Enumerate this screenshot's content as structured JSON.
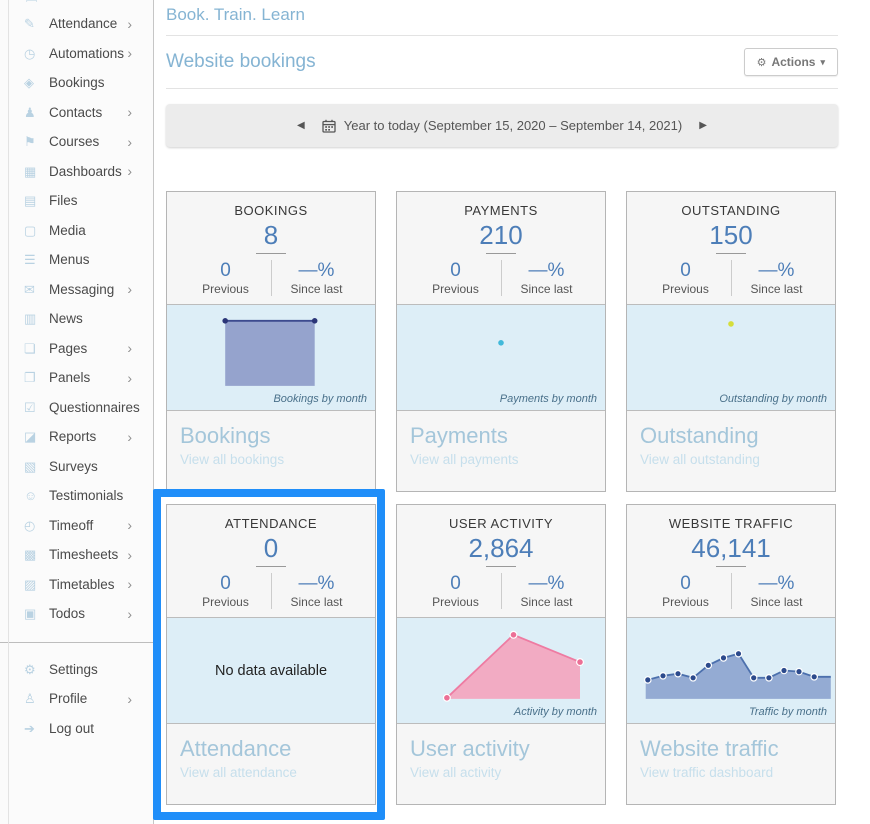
{
  "colors": {
    "accent_blue": "#85b4d3",
    "number_blue": "#4d7eb8",
    "chart_bg": "#ddeef7",
    "highlight": "#1f8ef9",
    "sidebar_icon": "#b9d2e2"
  },
  "sidebar": {
    "chevron_glyph": "›",
    "partial_icon_glyph": "▤",
    "items": [
      {
        "icon": "attendance-icon",
        "glyph": "✎",
        "label": "Attendance",
        "chevron": true
      },
      {
        "icon": "automations-icon",
        "glyph": "◷",
        "label": "Automations",
        "chevron": true
      },
      {
        "icon": "bookings-icon",
        "glyph": "◈",
        "label": "Bookings",
        "chevron": false
      },
      {
        "icon": "contacts-icon",
        "glyph": "♟",
        "label": "Contacts",
        "chevron": true
      },
      {
        "icon": "courses-icon",
        "glyph": "⚑",
        "label": "Courses",
        "chevron": true
      },
      {
        "icon": "dashboards-icon",
        "glyph": "▦",
        "label": "Dashboards",
        "chevron": true
      },
      {
        "icon": "files-icon",
        "glyph": "▤",
        "label": "Files",
        "chevron": false
      },
      {
        "icon": "media-icon",
        "glyph": "▢",
        "label": "Media",
        "chevron": false
      },
      {
        "icon": "menus-icon",
        "glyph": "☰",
        "label": "Menus",
        "chevron": false
      },
      {
        "icon": "messaging-icon",
        "glyph": "✉",
        "label": "Messaging",
        "chevron": true
      },
      {
        "icon": "news-icon",
        "glyph": "▥",
        "label": "News",
        "chevron": false
      },
      {
        "icon": "pages-icon",
        "glyph": "❏",
        "label": "Pages",
        "chevron": true
      },
      {
        "icon": "panels-icon",
        "glyph": "❐",
        "label": "Panels",
        "chevron": true
      },
      {
        "icon": "questionnaires-icon",
        "glyph": "☑",
        "label": "Questionnaires",
        "chevron": false
      },
      {
        "icon": "reports-icon",
        "glyph": "◪",
        "label": "Reports",
        "chevron": true
      },
      {
        "icon": "surveys-icon",
        "glyph": "▧",
        "label": "Surveys",
        "chevron": false
      },
      {
        "icon": "testimonials-icon",
        "glyph": "☺",
        "label": "Testimonials",
        "chevron": false
      },
      {
        "icon": "timeoff-icon",
        "glyph": "◴",
        "label": "Timeoff",
        "chevron": true
      },
      {
        "icon": "timesheets-icon",
        "glyph": "▩",
        "label": "Timesheets",
        "chevron": true
      },
      {
        "icon": "timetables-icon",
        "glyph": "▨",
        "label": "Timetables",
        "chevron": true
      },
      {
        "icon": "todos-icon",
        "glyph": "▣",
        "label": "Todos",
        "chevron": true
      }
    ],
    "footer_items": [
      {
        "icon": "settings-icon",
        "glyph": "⚙",
        "label": "Settings",
        "chevron": false
      },
      {
        "icon": "profile-icon",
        "glyph": "♙",
        "label": "Profile",
        "chevron": true
      },
      {
        "icon": "logout-icon",
        "glyph": "➔",
        "label": "Log out",
        "chevron": false
      }
    ]
  },
  "header": {
    "page_title": "Book. Train. Learn"
  },
  "section": {
    "title": "Website bookings",
    "actions_label": "Actions",
    "gear_glyph": "⚙",
    "caret_glyph": "▾"
  },
  "date_bar": {
    "prev_glyph": "◀",
    "next_glyph": "▶",
    "label": "Year to today (September 15, 2020 – September 14, 2021)"
  },
  "cards": [
    {
      "id": "bookings",
      "label": "BOOKINGS",
      "value": "8",
      "previous_value": "0",
      "previous_label": "Previous",
      "change_value": "—%",
      "change_label": "Since last",
      "caption": "Bookings by month",
      "footer_title": "Bookings",
      "footer_link": "View all bookings",
      "chart": {
        "type": "area",
        "colors": {
          "fill": "#95a3cd",
          "stroke": "#3d4b8f",
          "dot": "#2b3578",
          "dot_ring": "none"
        },
        "fill_path": [
          [
            28,
            15
          ],
          [
            71,
            15
          ],
          [
            71,
            77
          ],
          [
            28,
            77
          ]
        ],
        "line_path": [
          [
            28,
            15
          ],
          [
            71,
            15
          ]
        ],
        "dots": [
          [
            28,
            15
          ],
          [
            71,
            15
          ]
        ],
        "dot_r": 2.8
      }
    },
    {
      "id": "payments",
      "label": "PAYMENTS",
      "value": "210",
      "previous_value": "0",
      "previous_label": "Previous",
      "change_value": "—%",
      "change_label": "Since last",
      "caption": "Payments by month",
      "footer_title": "Payments",
      "footer_link": "View all payments",
      "chart": {
        "type": "scatter",
        "colors": {
          "fill": "none",
          "stroke": "none",
          "dot": "#41b9da",
          "dot_ring": "none"
        },
        "dots": [
          [
            50,
            36
          ]
        ],
        "dot_r": 2.8
      }
    },
    {
      "id": "outstanding",
      "label": "OUTSTANDING",
      "value": "150",
      "previous_value": "0",
      "previous_label": "Previous",
      "change_value": "—%",
      "change_label": "Since last",
      "caption": "Outstanding by month",
      "footer_title": "Outstanding",
      "footer_link": "View all outstanding",
      "chart": {
        "type": "scatter",
        "colors": {
          "fill": "none",
          "stroke": "none",
          "dot": "#d5de3b",
          "dot_ring": "none"
        },
        "dots": [
          [
            50,
            18
          ]
        ],
        "dot_r": 2.8
      }
    },
    {
      "id": "attendance",
      "label": "ATTENDANCE",
      "value": "0",
      "previous_value": "0",
      "previous_label": "Previous",
      "change_value": "—%",
      "change_label": "Since last",
      "caption": null,
      "no_data_text": "No data available",
      "footer_title": "Attendance",
      "footer_link": "View all attendance",
      "chart": null
    },
    {
      "id": "user-activity",
      "label": "USER ACTIVITY",
      "value": "2,864",
      "previous_value": "0",
      "previous_label": "Previous",
      "change_value": "—%",
      "change_label": "Since last",
      "caption": "Activity by month",
      "footer_title": "User activity",
      "footer_link": "View all activity",
      "chart": {
        "type": "area",
        "colors": {
          "fill": "#f2abc3",
          "stroke": "#ee7ba2",
          "dot": "#ec6f96",
          "dot_ring": "#ffffff"
        },
        "fill_path": [
          [
            24,
            76
          ],
          [
            56,
            16
          ],
          [
            88,
            42
          ],
          [
            88,
            77
          ],
          [
            24,
            77
          ]
        ],
        "line_path": [
          [
            24,
            76
          ],
          [
            56,
            16
          ],
          [
            88,
            42
          ]
        ],
        "dots": [
          [
            24,
            76
          ],
          [
            56,
            16
          ],
          [
            88,
            42
          ]
        ],
        "dot_r": 3.4
      }
    },
    {
      "id": "website-traffic",
      "label": "WEBSITE TRAFFIC",
      "value": "46,141",
      "previous_value": "0",
      "previous_label": "Previous",
      "change_value": "—%",
      "change_label": "Since last",
      "caption": "Traffic by month",
      "footer_title": "Website traffic",
      "footer_link": "View traffic dashboard",
      "chart": {
        "type": "area",
        "colors": {
          "fill": "#94abd3",
          "stroke": "#4c70ad",
          "dot": "#2c4a8c",
          "dot_ring": "#ffffff"
        },
        "fill_path": [
          [
            9,
            59
          ],
          [
            10,
            59
          ],
          [
            17.3,
            55
          ],
          [
            24.5,
            53
          ],
          [
            31.8,
            57
          ],
          [
            39.1,
            45
          ],
          [
            46.4,
            38
          ],
          [
            53.6,
            34
          ],
          [
            60.9,
            57
          ],
          [
            68.2,
            57
          ],
          [
            75.5,
            50
          ],
          [
            82.7,
            51
          ],
          [
            90,
            56
          ],
          [
            98,
            56
          ],
          [
            98,
            77
          ],
          [
            9,
            77
          ]
        ],
        "line_path": [
          [
            9,
            59
          ],
          [
            10,
            59
          ],
          [
            17.3,
            55
          ],
          [
            24.5,
            53
          ],
          [
            31.8,
            57
          ],
          [
            39.1,
            45
          ],
          [
            46.4,
            38
          ],
          [
            53.6,
            34
          ],
          [
            60.9,
            57
          ],
          [
            68.2,
            57
          ],
          [
            75.5,
            50
          ],
          [
            82.7,
            51
          ],
          [
            90,
            56
          ],
          [
            98,
            56
          ]
        ],
        "dots": [
          [
            10,
            59
          ],
          [
            17.3,
            55
          ],
          [
            24.5,
            53
          ],
          [
            31.8,
            57
          ],
          [
            39.1,
            45
          ],
          [
            46.4,
            38
          ],
          [
            53.6,
            34
          ],
          [
            60.9,
            57
          ],
          [
            68.2,
            57
          ],
          [
            75.5,
            50
          ],
          [
            82.7,
            51
          ],
          [
            90,
            56
          ]
        ],
        "dot_r": 3.2
      }
    }
  ]
}
